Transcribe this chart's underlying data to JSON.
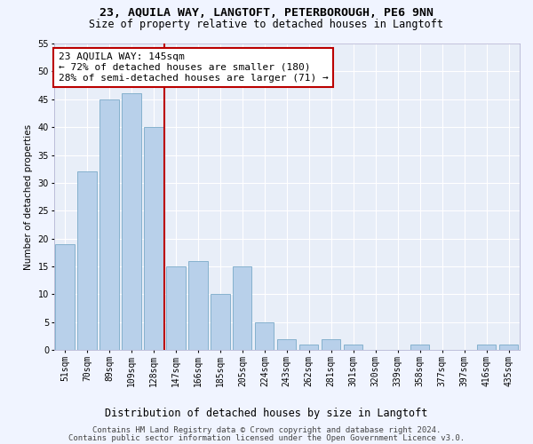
{
  "title1": "23, AQUILA WAY, LANGTOFT, PETERBOROUGH, PE6 9NN",
  "title2": "Size of property relative to detached houses in Langtoft",
  "xlabel": "Distribution of detached houses by size in Langtoft",
  "ylabel": "Number of detached properties",
  "categories": [
    "51sqm",
    "70sqm",
    "89sqm",
    "109sqm",
    "128sqm",
    "147sqm",
    "166sqm",
    "185sqm",
    "205sqm",
    "224sqm",
    "243sqm",
    "262sqm",
    "281sqm",
    "301sqm",
    "320sqm",
    "339sqm",
    "358sqm",
    "377sqm",
    "397sqm",
    "416sqm",
    "435sqm"
  ],
  "values": [
    19,
    32,
    45,
    46,
    40,
    15,
    16,
    10,
    15,
    5,
    2,
    1,
    2,
    1,
    0,
    0,
    1,
    0,
    0,
    1,
    1
  ],
  "bar_color": "#b8d0ea",
  "bar_edge_color": "#7aaac8",
  "vline_x_index": 4.5,
  "vline_color": "#bb0000",
  "annotation_line1": "23 AQUILA WAY: 145sqm",
  "annotation_line2": "← 72% of detached houses are smaller (180)",
  "annotation_line3": "28% of semi-detached houses are larger (71) →",
  "annotation_box_facecolor": "#ffffff",
  "annotation_box_edgecolor": "#bb0000",
  "ylim": [
    0,
    55
  ],
  "yticks": [
    0,
    5,
    10,
    15,
    20,
    25,
    30,
    35,
    40,
    45,
    50,
    55
  ],
  "footer1": "Contains HM Land Registry data © Crown copyright and database right 2024.",
  "footer2": "Contains public sector information licensed under the Open Government Licence v3.0.",
  "fig_facecolor": "#f0f4ff",
  "ax_facecolor": "#e8eef8",
  "grid_color": "#ffffff",
  "title1_fontsize": 9.5,
  "title2_fontsize": 8.5,
  "xlabel_fontsize": 8.5,
  "ylabel_fontsize": 7.5,
  "tick_fontsize": 7,
  "annotation_fontsize": 8,
  "footer_fontsize": 6.5,
  "spine_color": "#aaaacc"
}
